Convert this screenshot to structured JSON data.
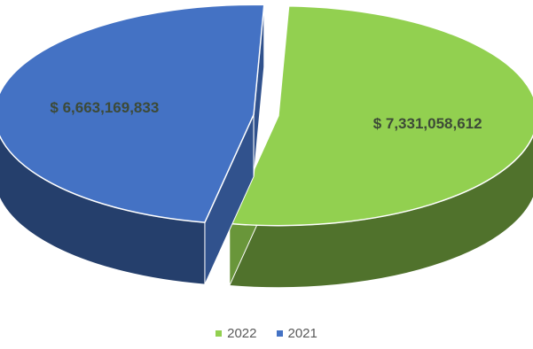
{
  "chart_data": {
    "type": "pie",
    "style": "3d-exploded",
    "categories": [
      "2022",
      "2021"
    ],
    "values": [
      7331058612,
      6663169833
    ],
    "data_labels": [
      "$ 7,331,058,612",
      "$ 6,663,169,833"
    ],
    "colors": {
      "2022": "#92d050",
      "2021": "#4472c4"
    },
    "legend": {
      "position": "bottom",
      "items": [
        {
          "label": "2022",
          "color": "#92d050"
        },
        {
          "label": "2021",
          "color": "#4472c4"
        }
      ]
    }
  }
}
